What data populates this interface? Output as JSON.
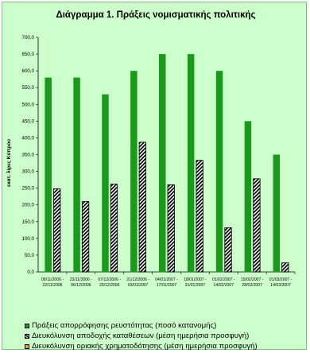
{
  "chart_data": {
    "type": "bar",
    "title": "Διάγραμμα 1. Πράξεις νομισματικής πολιτικής",
    "ylabel": "εκατ. λίρες Κύπρου",
    "xlabel": "",
    "ylim": [
      0,
      700
    ],
    "ytick_step": 50,
    "ytick_labels": [
      "0,0",
      "50,0",
      "100,0",
      "150,0",
      "200,0",
      "250,0",
      "300,0",
      "350,0",
      "400,0",
      "450,0",
      "500,0",
      "550,0",
      "600,0",
      "650,0",
      "700,0"
    ],
    "categories": [
      [
        "09/11/2006 -",
        "22/11/2006"
      ],
      [
        "23/11/2006 -",
        "06/12/2006"
      ],
      [
        "07/12/2006 -",
        "20/12/2006"
      ],
      [
        "21/12/2006 -",
        "03/01/2007"
      ],
      [
        "04/01/2007 -",
        "17/01/2007"
      ],
      [
        "18/01/2007 -",
        "31/01/2007"
      ],
      [
        "01/02/2007 -",
        "14/02/2007"
      ],
      [
        "15/02/2007 -",
        "28/02/2007"
      ],
      [
        "01/03/2007 -",
        "14/03/2007"
      ]
    ],
    "series": [
      {
        "name": "Πράξεις απορρόφησης ρευστότητας (ποσό κατανομής)",
        "color": "#1a9a1a",
        "pattern": "solid",
        "values": [
          580,
          580,
          530,
          600,
          650,
          650,
          600,
          450,
          350
        ]
      },
      {
        "name": "Διευκόλυνση αποδοχής καταθέσεων (μέση ημερήσια προσφυγή)",
        "color": "#000000",
        "pattern": "diagonal-stripes",
        "values": [
          248,
          210,
          262,
          387,
          260,
          333,
          132,
          278,
          27
        ]
      },
      {
        "name": "Διευκόλυνση οριακής χρηματοδότησης (μέση ημερήσια προσφυγή)",
        "color": "#f0a020",
        "pattern": "solid",
        "values": [
          0,
          0,
          0,
          0,
          0,
          0,
          0,
          0,
          0
        ]
      }
    ],
    "grid": false,
    "legend_position": "bottom"
  }
}
